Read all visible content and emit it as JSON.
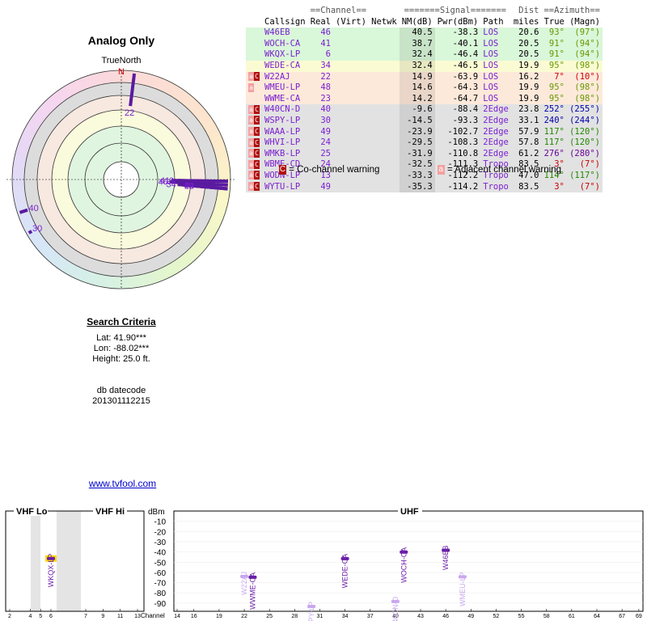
{
  "title": "Analog Only",
  "compass": {
    "label": "TrueNorth",
    "north": "N"
  },
  "criteria": {
    "heading": "Search Criteria",
    "lat": "Lat: 41.90***",
    "lon": "Lon: -88.02***",
    "height": "Height: 25.0 ft.",
    "db_label": "db datecode",
    "db_code": "201301112215",
    "link": "www.tvfool.com"
  },
  "table": {
    "groups": [
      "==Channel==",
      "=======Signal=======",
      "==Azimuth=="
    ],
    "dist_top": "Dist",
    "headers": [
      "Callsign",
      "Real",
      "(Virt)",
      "Netwk",
      "NM(dB)",
      "Pwr(dBm)",
      "Path",
      "miles",
      "True",
      "(Magn)"
    ],
    "rows": [
      {
        "callsign": "W46EB",
        "real": 46,
        "nm": 40.5,
        "pwr": -38.3,
        "path": "LOS",
        "dist": "20.6",
        "true": "93°",
        "magn": "(97°)",
        "warn": [],
        "bg": "#d9f7d9",
        "az_color": "#669900"
      },
      {
        "callsign": "WOCH-CA",
        "real": 41,
        "nm": 38.7,
        "pwr": -40.1,
        "path": "LOS",
        "dist": "20.5",
        "true": "91°",
        "magn": "(94°)",
        "warn": [],
        "bg": "#d9f7d9",
        "az_color": "#669900"
      },
      {
        "callsign": "WKQX-LP",
        "real": 6,
        "nm": 32.4,
        "pwr": -46.4,
        "path": "LOS",
        "dist": "20.5",
        "true": "91°",
        "magn": "(94°)",
        "warn": [],
        "bg": "#d9f7d9",
        "az_color": "#669900"
      },
      {
        "callsign": "WEDE-CA",
        "real": 34,
        "nm": 32.4,
        "pwr": -46.5,
        "path": "LOS",
        "dist": "19.9",
        "true": "95°",
        "magn": "(98°)",
        "warn": [],
        "bg": "#fbfbd3",
        "az_color": "#669900"
      },
      {
        "callsign": "W22AJ",
        "real": 22,
        "nm": 14.9,
        "pwr": -63.9,
        "path": "LOS",
        "dist": "16.2",
        "true": "7°",
        "magn": "(10°)",
        "warn": [
          "a",
          "C"
        ],
        "bg": "#fde9da",
        "az_color": "#cc0000"
      },
      {
        "callsign": "WMEU-LP",
        "real": 48,
        "nm": 14.6,
        "pwr": -64.3,
        "path": "LOS",
        "dist": "19.9",
        "true": "95°",
        "magn": "(98°)",
        "warn": [
          "a"
        ],
        "bg": "#fde9da",
        "az_color": "#669900"
      },
      {
        "callsign": "WWME-CA",
        "real": 23,
        "nm": 14.2,
        "pwr": -64.7,
        "path": "LOS",
        "dist": "19.9",
        "true": "95°",
        "magn": "(98°)",
        "warn": [],
        "bg": "#fde9da",
        "az_color": "#669900"
      },
      {
        "callsign": "W40CN-D",
        "real": 40,
        "nm": -9.6,
        "pwr": -88.4,
        "path": "2Edge",
        "dist": "23.8",
        "true": "252°",
        "magn": "(255°)",
        "warn": [
          "a",
          "C"
        ],
        "bg": "#e2e2e2",
        "az_color": "#0000aa"
      },
      {
        "callsign": "WSPY-LP",
        "real": 30,
        "nm": -14.5,
        "pwr": -93.3,
        "path": "2Edge",
        "dist": "33.1",
        "true": "240°",
        "magn": "(244°)",
        "warn": [
          "a",
          "C"
        ],
        "bg": "#e2e2e2",
        "az_color": "#0000aa"
      },
      {
        "callsign": "WAAA-LP",
        "real": 49,
        "nm": -23.9,
        "pwr": -102.7,
        "path": "2Edge",
        "dist": "57.9",
        "true": "117°",
        "magn": "(120°)",
        "warn": [
          "a",
          "C"
        ],
        "bg": "#e2e2e2",
        "az_color": "#228800"
      },
      {
        "callsign": "WHVI-LP",
        "real": 24,
        "nm": -29.5,
        "pwr": -108.3,
        "path": "2Edge",
        "dist": "57.8",
        "true": "117°",
        "magn": "(120°)",
        "warn": [
          "a",
          "C"
        ],
        "bg": "#e2e2e2",
        "az_color": "#228800"
      },
      {
        "callsign": "WMKB-LP",
        "real": 25,
        "nm": -31.9,
        "pwr": -110.8,
        "path": "2Edge",
        "dist": "61.2",
        "true": "276°",
        "magn": "(280°)",
        "warn": [
          "a",
          "C"
        ],
        "bg": "#e2e2e2",
        "az_color": "#660099"
      },
      {
        "callsign": "WBME-CD",
        "real": 24,
        "nm": -32.5,
        "pwr": -111.3,
        "path": "Tropo",
        "dist": "83.5",
        "true": "3°",
        "magn": "(7°)",
        "warn": [
          "a",
          "C"
        ],
        "bg": "#e2e2e2",
        "az_color": "#cc0000"
      },
      {
        "callsign": "WODN-LP",
        "real": 13,
        "nm": -33.3,
        "pwr": -112.2,
        "path": "Tropo",
        "dist": "47.0",
        "true": "114°",
        "magn": "(117°)",
        "warn": [
          "a",
          "C"
        ],
        "bg": "#e2e2e2",
        "az_color": "#228800"
      },
      {
        "callsign": "WYTU-LP",
        "real": 49,
        "nm": -35.3,
        "pwr": -114.2,
        "path": "Tropo",
        "dist": "83.5",
        "true": "3°",
        "magn": "(7°)",
        "warn": [
          "a",
          "C"
        ],
        "bg": "#e2e2e2",
        "az_color": "#cc0000"
      }
    ]
  },
  "legend": {
    "co_mark": "C",
    "co": "= Co-channel warning",
    "adj_mark": "a",
    "adj": "= Adjacent channel warning"
  },
  "spectrum": {
    "sections": [
      "VHF Lo",
      "VHF Hi",
      "UHF"
    ],
    "y_label": "dBm",
    "x_label": "Channel",
    "ylim": [
      -98,
      0
    ],
    "yticks": [
      -10,
      -20,
      -30,
      -40,
      -50,
      -60,
      -70,
      -80,
      -90
    ],
    "xticks": [
      2,
      4,
      5,
      6,
      7,
      9,
      11,
      13,
      14,
      16,
      19,
      22,
      25,
      28,
      31,
      34,
      37,
      40,
      43,
      46,
      49,
      52,
      55,
      58,
      61,
      64,
      67,
      69
    ],
    "highlight_row": 2,
    "color": "#6a1fa8"
  }
}
